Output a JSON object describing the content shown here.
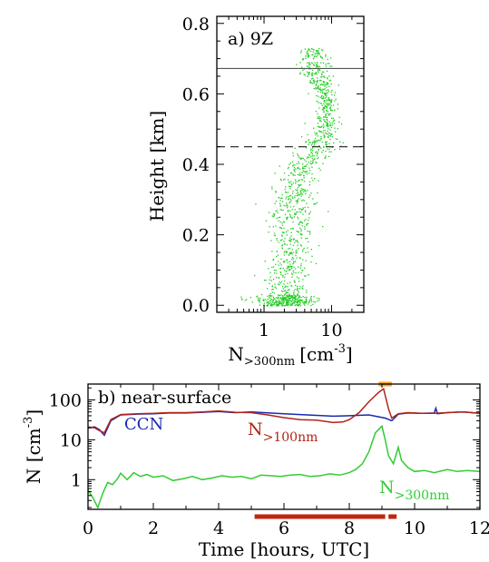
{
  "chart_data": [
    {
      "type": "scatter",
      "panel_label": "a) 9Z",
      "xlabel": {
        "main": "N",
        "sub": ">300nm",
        "unit": "[cm",
        "exp": "-3",
        "close": "]"
      },
      "ylabel": "Height [km]",
      "x_scale": "log",
      "xlim": [
        0.2,
        30
      ],
      "ylim": [
        -0.02,
        0.82
      ],
      "x_ticks": [
        {
          "value": 1,
          "label": "1"
        },
        {
          "value": 10,
          "label": "10"
        }
      ],
      "y_ticks": [
        {
          "value": 0.0,
          "label": "0.0"
        },
        {
          "value": 0.2,
          "label": "0.2"
        },
        {
          "value": 0.4,
          "label": "0.4"
        },
        {
          "value": 0.6,
          "label": "0.6"
        },
        {
          "value": 0.8,
          "label": "0.8"
        }
      ],
      "hlines": [
        {
          "y": 0.672,
          "style": "solid"
        },
        {
          "y": 0.45,
          "style": "dashed"
        }
      ],
      "point_color": "#22cc22",
      "profile": [
        {
          "z": 0.0,
          "median": 2.1,
          "spread": 0.28
        },
        {
          "z": 0.05,
          "median": 2.2,
          "spread": 0.25
        },
        {
          "z": 0.1,
          "median": 2.2,
          "spread": 0.22
        },
        {
          "z": 0.15,
          "median": 2.4,
          "spread": 0.22
        },
        {
          "z": 0.2,
          "median": 2.3,
          "spread": 0.22
        },
        {
          "z": 0.25,
          "median": 2.5,
          "spread": 0.22
        },
        {
          "z": 0.3,
          "median": 2.7,
          "spread": 0.2
        },
        {
          "z": 0.35,
          "median": 3.0,
          "spread": 0.2
        },
        {
          "z": 0.4,
          "median": 3.4,
          "spread": 0.18
        },
        {
          "z": 0.45,
          "median": 6.5,
          "spread": 0.2
        },
        {
          "z": 0.5,
          "median": 8.0,
          "spread": 0.12
        },
        {
          "z": 0.55,
          "median": 8.5,
          "spread": 0.1
        },
        {
          "z": 0.6,
          "median": 8.0,
          "spread": 0.1
        },
        {
          "z": 0.65,
          "median": 6.0,
          "spread": 0.14
        },
        {
          "z": 0.7,
          "median": 5.3,
          "spread": 0.14
        },
        {
          "z": 0.73,
          "median": 5.0,
          "spread": 0.12
        }
      ]
    },
    {
      "type": "line",
      "panel_label": "b) near-surface",
      "xlabel": "Time [hours, UTC]",
      "ylabel": {
        "main": "N [cm",
        "exp": "-3",
        "close": "]"
      },
      "y_scale": "log",
      "xlim": [
        0,
        12
      ],
      "ylim": [
        0.18,
        250
      ],
      "x_ticks": [
        {
          "value": 0,
          "label": "0"
        },
        {
          "value": 2,
          "label": "2"
        },
        {
          "value": 4,
          "label": "4"
        },
        {
          "value": 6,
          "label": "6"
        },
        {
          "value": 8,
          "label": "8"
        },
        {
          "value": 10,
          "label": "10"
        },
        {
          "value": 12,
          "label": "12"
        }
      ],
      "y_ticks": [
        {
          "value": 1,
          "label": "1"
        },
        {
          "value": 10,
          "label": "10"
        },
        {
          "value": 100,
          "label": "100"
        }
      ],
      "series": [
        {
          "name": "CCN",
          "color": "#1a2ab0",
          "x": [
            0,
            0.2,
            0.35,
            0.5,
            0.7,
            1.0,
            1.5,
            2,
            2.5,
            3,
            3.5,
            4,
            4.5,
            5,
            6,
            7,
            7.5,
            8,
            8.6,
            9.1,
            9.3,
            9.5,
            9.8,
            10.2,
            10.6,
            10.65,
            10.7,
            11,
            11.5,
            12
          ],
          "y": [
            20,
            21,
            18,
            13,
            30,
            42,
            44,
            45,
            47,
            47,
            49,
            51,
            48,
            50,
            45,
            41,
            39,
            40,
            42,
            35,
            30,
            44,
            47,
            46,
            47,
            62,
            45,
            48,
            50,
            46
          ]
        },
        {
          "name": "N>100nm",
          "label": {
            "main": "N",
            "sub": ">100nm"
          },
          "color": "#b02418",
          "x": [
            0,
            0.2,
            0.35,
            0.5,
            0.7,
            1.0,
            1.5,
            2,
            2.5,
            3,
            3.5,
            4,
            4.5,
            5,
            5.5,
            6,
            6.5,
            7,
            7.5,
            7.8,
            8.0,
            8.3,
            8.6,
            8.9,
            9.05,
            9.2,
            9.3,
            9.5,
            9.8,
            10.2,
            10.6,
            11,
            11.5,
            12
          ],
          "y": [
            21,
            20,
            17,
            15,
            32,
            43,
            45,
            46,
            48,
            48,
            50,
            53,
            49,
            48,
            42,
            36,
            32,
            31,
            27,
            28,
            32,
            48,
            90,
            155,
            190,
            60,
            35,
            45,
            48,
            46,
            46,
            48,
            50,
            46
          ]
        },
        {
          "name": "N>300nm",
          "label": {
            "main": "N",
            "sub": ">300nm"
          },
          "color": "#33cc33",
          "x": [
            0,
            0.15,
            0.3,
            0.45,
            0.6,
            0.75,
            0.9,
            1.0,
            1.2,
            1.4,
            1.6,
            1.8,
            2.0,
            2.3,
            2.6,
            2.9,
            3.2,
            3.5,
            3.8,
            4.1,
            4.4,
            4.7,
            5.0,
            5.3,
            5.6,
            5.9,
            6.2,
            6.5,
            6.8,
            7.1,
            7.4,
            7.7,
            8.0,
            8.2,
            8.4,
            8.6,
            8.8,
            9.0,
            9.1,
            9.2,
            9.35,
            9.5,
            9.6,
            9.8,
            10.0,
            10.3,
            10.6,
            11.0,
            11.3,
            11.6,
            12
          ],
          "y": [
            0.55,
            0.35,
            0.2,
            0.45,
            0.85,
            0.75,
            1.05,
            1.45,
            1.0,
            1.5,
            1.2,
            1.35,
            1.15,
            1.25,
            0.95,
            1.05,
            1.2,
            1.0,
            1.1,
            1.25,
            1.15,
            1.2,
            1.05,
            1.3,
            1.25,
            1.2,
            1.3,
            1.35,
            1.2,
            1.25,
            1.4,
            1.3,
            1.5,
            1.8,
            2.5,
            5.0,
            15,
            22,
            10,
            4,
            2.5,
            6.5,
            3.0,
            2.0,
            1.6,
            1.7,
            1.5,
            1.8,
            1.6,
            1.7,
            1.6
          ]
        }
      ],
      "bars": [
        {
          "x0": 8.9,
          "x1": 9.3,
          "position": "top",
          "color": "#f6a21e"
        },
        {
          "x0": 5.1,
          "x1": 9.1,
          "position": "bottom",
          "color": "#c0260e"
        },
        {
          "x0": 9.2,
          "x1": 9.45,
          "position": "bottom",
          "color": "#c0260e"
        }
      ]
    }
  ]
}
